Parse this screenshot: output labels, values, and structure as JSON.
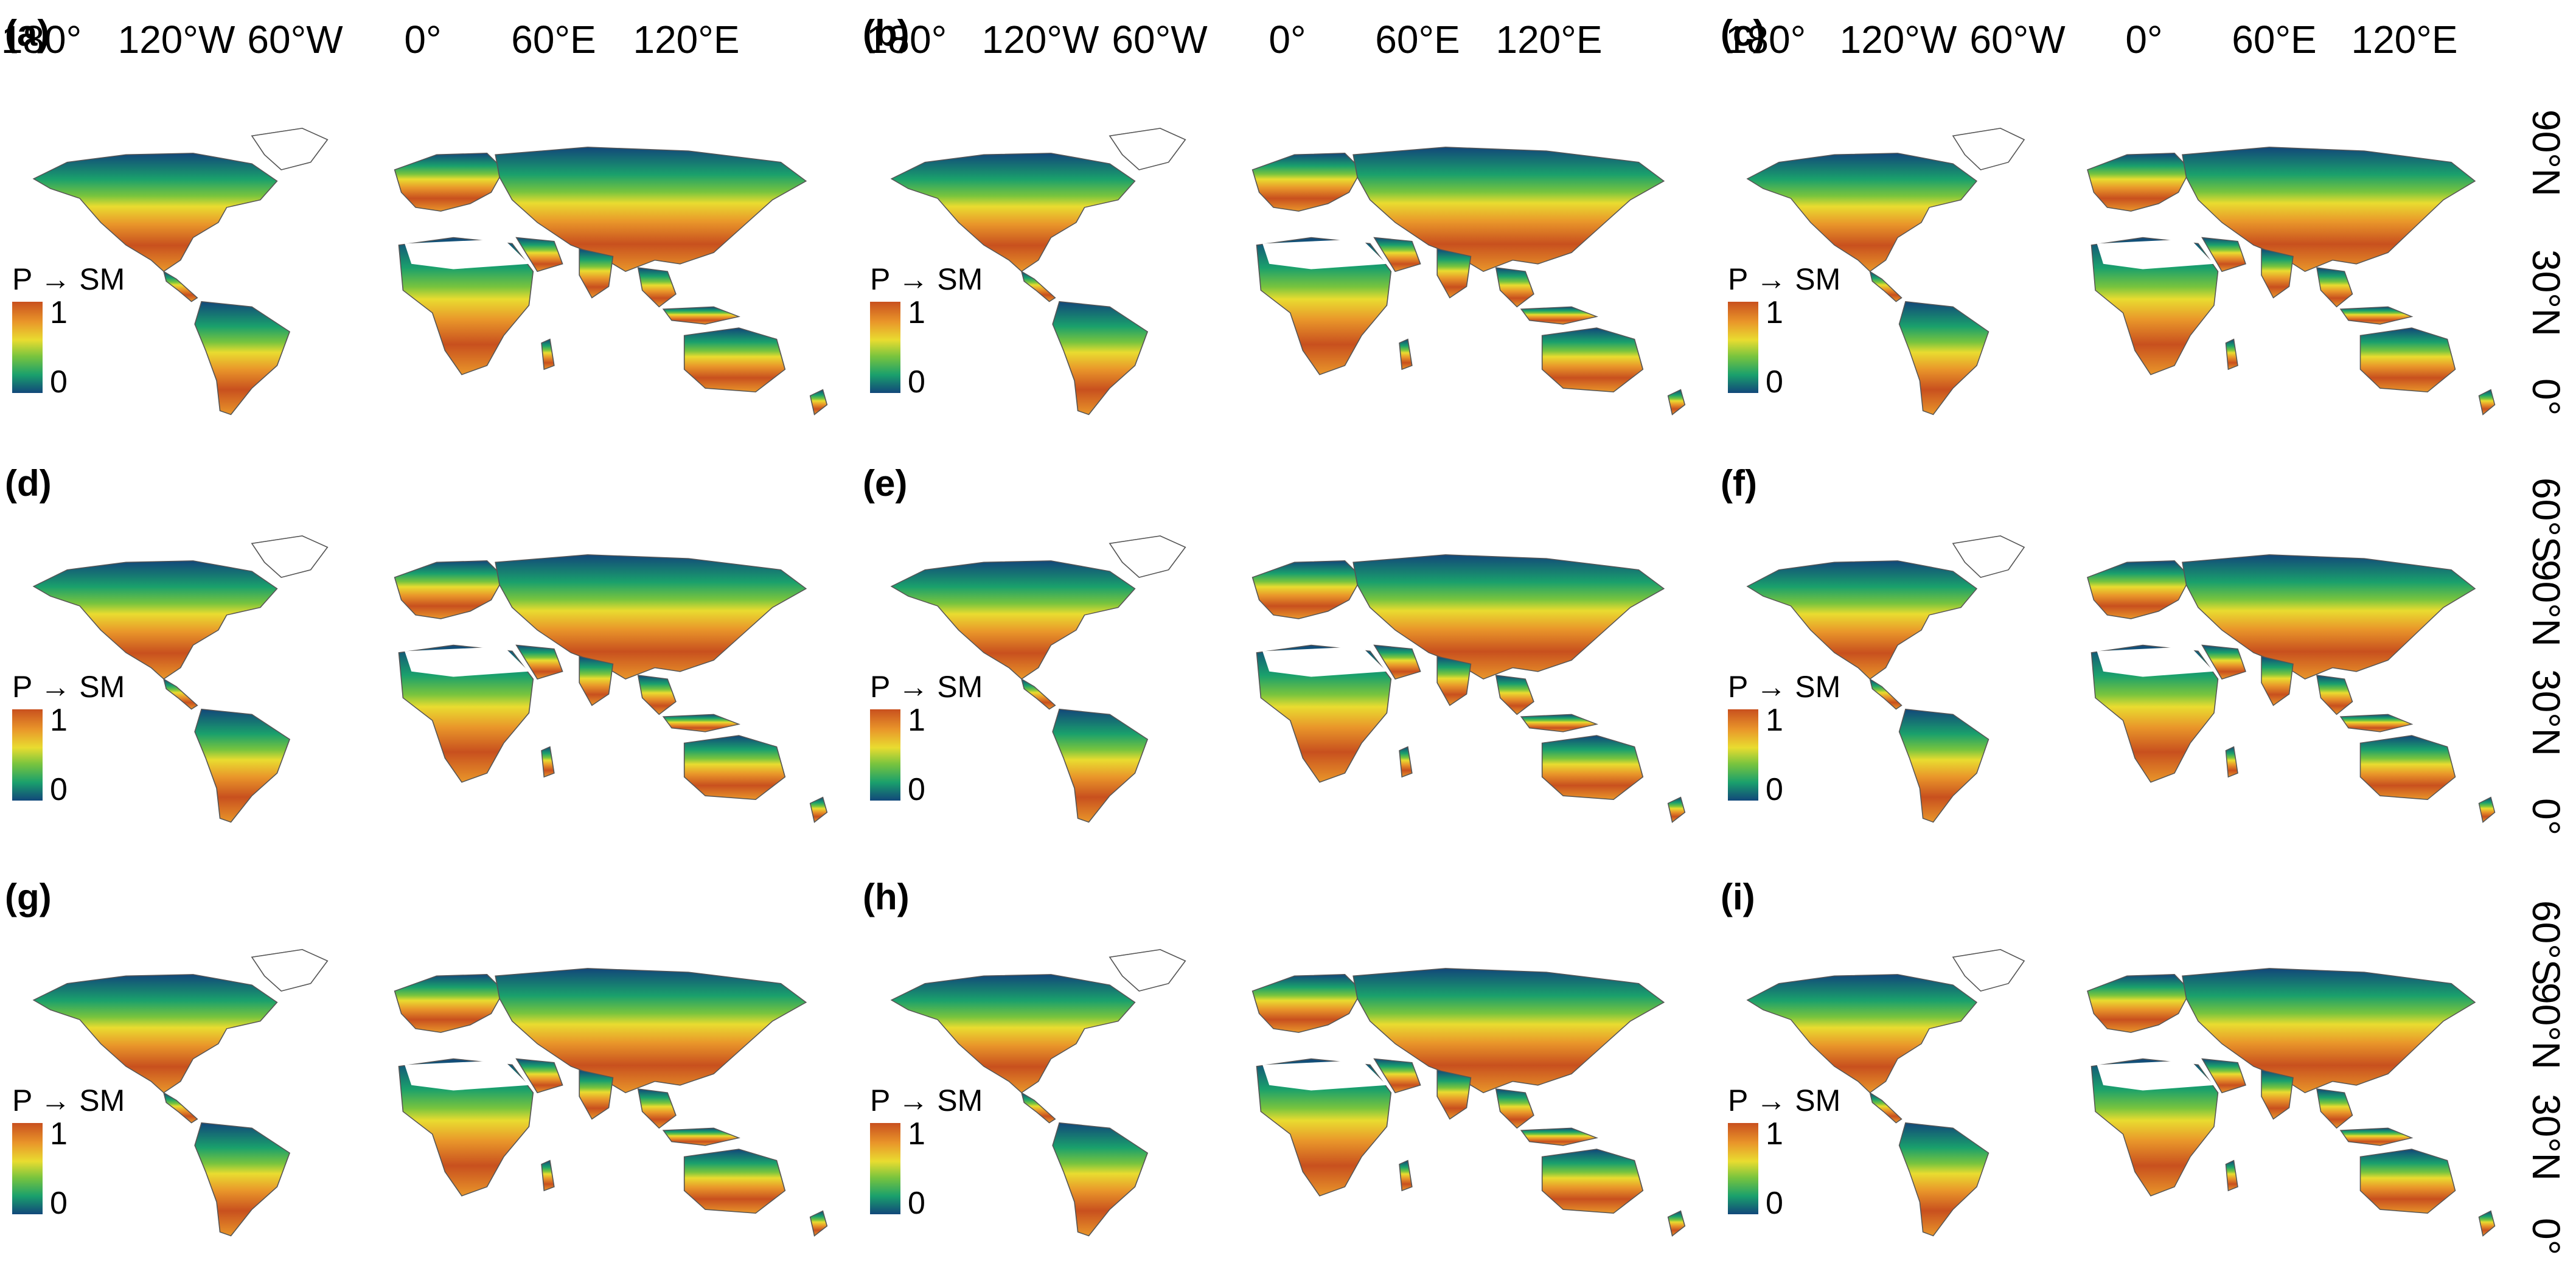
{
  "axes": {
    "lon_labels": [
      "180°",
      "120°W",
      "60°W",
      "0°",
      "60°E",
      "120°E"
    ],
    "lat_labels": [
      "90°N",
      "30°N",
      "0°",
      "60°S"
    ]
  },
  "colorbar": {
    "title": "P → SM",
    "max": "1",
    "min": "0",
    "colors": [
      "#c8501e",
      "#e9962a",
      "#e9dc30",
      "#78c43e",
      "#1aa06c",
      "#12477a"
    ]
  },
  "panels": [
    {
      "label": "(a)"
    },
    {
      "label": "(b)"
    },
    {
      "label": "(c)"
    },
    {
      "label": "(d)"
    },
    {
      "label": "(e)"
    },
    {
      "label": "(f)"
    },
    {
      "label": "(g)"
    },
    {
      "label": "(h)"
    },
    {
      "label": "(i)"
    }
  ]
}
